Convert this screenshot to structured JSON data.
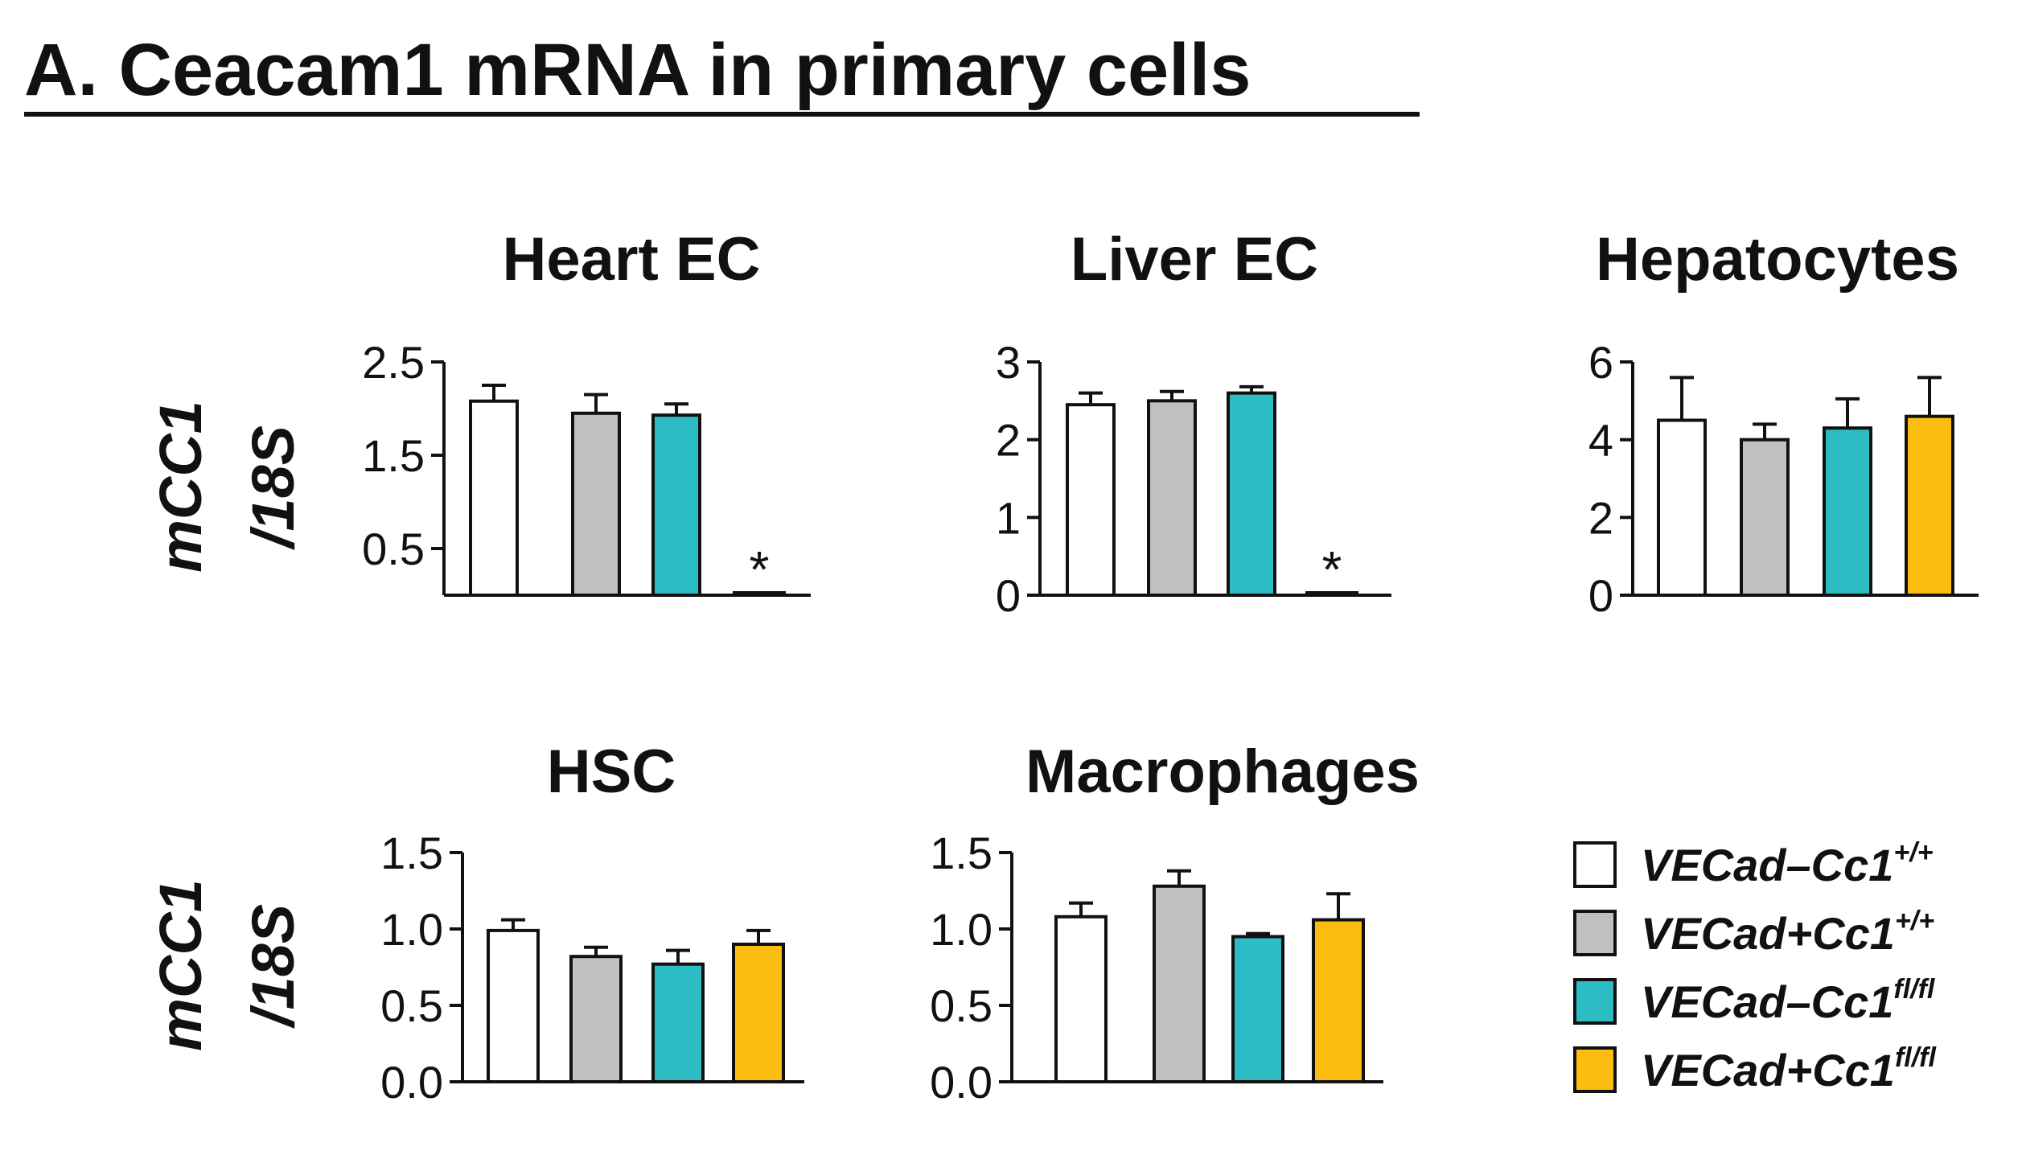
{
  "figure_title": "A. Ceacam1 mRNA in primary cells",
  "y_label_line1": "mCC1",
  "y_label_line2": "/18S",
  "colors": {
    "VECad-Cc1+/+": "#ffffff",
    "VECad+Cc1+/+": "#c0c0c0",
    "VECad-Cc1fl/fl": "#2cbcc4",
    "VECad+Cc1fl/fl": "#fbbd0f"
  },
  "legend": [
    {
      "label": "VECad–Cc1",
      "sup": "+/+",
      "color": "#ffffff"
    },
    {
      "label": "VECad+Cc1",
      "sup": "+/+",
      "color": "#c0c0c0"
    },
    {
      "label": "VECad–Cc1",
      "sup": "fl/fl",
      "color": "#2cbcc4"
    },
    {
      "label": "VECad+Cc1",
      "sup": "fl/fl",
      "color": "#fbbd0f"
    }
  ],
  "chart_data": [
    {
      "type": "bar",
      "title": "Heart EC",
      "ylabel": "mCC1/18S",
      "ylim": [
        0,
        2.5
      ],
      "yticks": [
        0.5,
        1.5,
        2.5
      ],
      "ytick_labels": [
        "0.5",
        "1.5",
        "2.5"
      ],
      "categories": [
        "VECad-Cc1+/+",
        "VECad+Cc1+/+",
        "VECad-Cc1fl/fl",
        "VECad+Cc1fl/fl"
      ],
      "values": [
        2.08,
        1.95,
        1.93,
        0.02
      ],
      "errors": [
        0.17,
        0.2,
        0.12,
        0.0
      ],
      "significance": [
        "",
        "",
        "",
        "*"
      ]
    },
    {
      "type": "bar",
      "title": "Liver EC",
      "ylabel": "mCC1/18S",
      "ylim": [
        0,
        3
      ],
      "yticks": [
        0,
        1,
        2,
        3
      ],
      "ytick_labels": [
        "0",
        "1",
        "2",
        "3"
      ],
      "categories": [
        "VECad-Cc1+/+",
        "VECad+Cc1+/+",
        "VECad-Cc1fl/fl",
        "VECad+Cc1fl/fl"
      ],
      "values": [
        2.45,
        2.5,
        2.6,
        0.02
      ],
      "errors": [
        0.15,
        0.12,
        0.08,
        0.0
      ],
      "significance": [
        "",
        "",
        "",
        "*"
      ]
    },
    {
      "type": "bar",
      "title": "Hepatocytes",
      "ylabel": "mCC1/18S",
      "ylim": [
        0,
        6
      ],
      "yticks": [
        0,
        2,
        4,
        6
      ],
      "ytick_labels": [
        "0",
        "2",
        "4",
        "6"
      ],
      "categories": [
        "VECad-Cc1+/+",
        "VECad+Cc1+/+",
        "VECad-Cc1fl/fl",
        "VECad+Cc1fl/fl"
      ],
      "values": [
        4.5,
        4.0,
        4.3,
        4.6
      ],
      "errors": [
        1.1,
        0.4,
        0.75,
        1.0
      ],
      "significance": [
        "",
        "",
        "",
        ""
      ]
    },
    {
      "type": "bar",
      "title": "HSC",
      "ylabel": "mCC1/18S",
      "ylim": [
        0,
        1.5
      ],
      "yticks": [
        0.0,
        0.5,
        1.0,
        1.5
      ],
      "ytick_labels": [
        "0.0",
        "0.5",
        "1.0",
        "1.5"
      ],
      "categories": [
        "VECad-Cc1+/+",
        "VECad+Cc1+/+",
        "VECad-Cc1fl/fl",
        "VECad+Cc1fl/fl"
      ],
      "values": [
        0.99,
        0.82,
        0.77,
        0.9
      ],
      "errors": [
        0.07,
        0.06,
        0.09,
        0.09
      ],
      "significance": [
        "",
        "",
        "",
        ""
      ]
    },
    {
      "type": "bar",
      "title": "Macrophages",
      "ylabel": "mCC1/18S",
      "ylim": [
        0,
        1.5
      ],
      "yticks": [
        0.0,
        0.5,
        1.0,
        1.5
      ],
      "ytick_labels": [
        "0.0",
        "0.5",
        "1.0",
        "1.5"
      ],
      "categories": [
        "VECad-Cc1+/+",
        "VECad+Cc1+/+",
        "VECad-Cc1fl/fl",
        "VECad+Cc1fl/fl"
      ],
      "values": [
        1.08,
        1.28,
        0.95,
        1.06
      ],
      "errors": [
        0.09,
        0.1,
        0.02,
        0.17
      ],
      "significance": [
        "",
        "",
        "",
        ""
      ]
    }
  ]
}
